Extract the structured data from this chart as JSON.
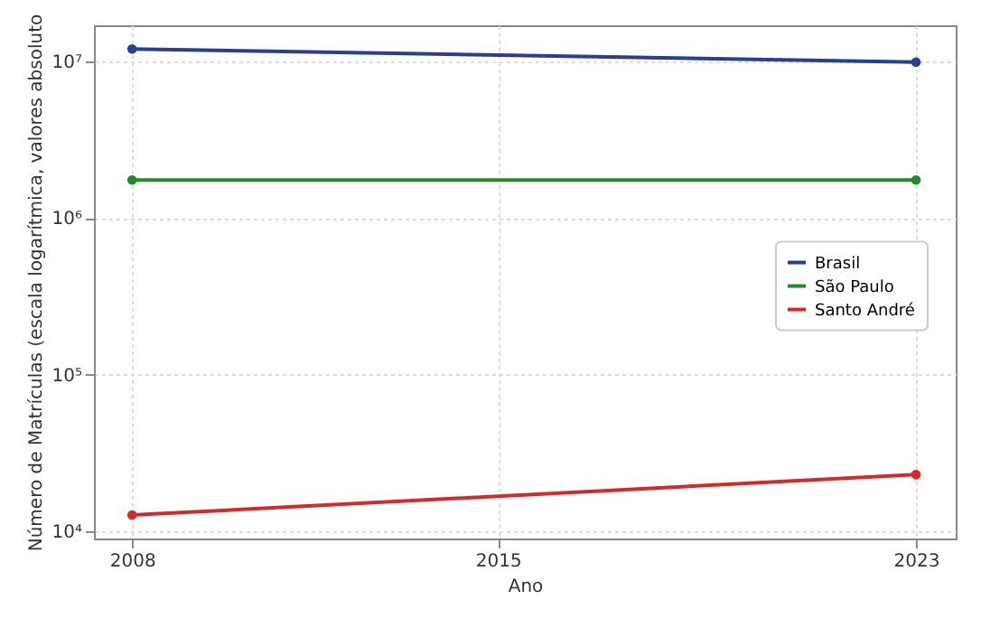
{
  "chart_data": {
    "type": "line",
    "xlabel": "Ano",
    "ylabel": "Número de Matrículas (escala logarítmica, valores absoluto",
    "x": [
      2008,
      2023
    ],
    "series": [
      {
        "name": "Brasil",
        "color": "#2a3f92",
        "values": [
          12000000,
          9900000
        ]
      },
      {
        "name": "São Paulo",
        "color": "#1f8a2e",
        "values": [
          1750000,
          1750000
        ]
      },
      {
        "name": "Santo André",
        "color": "#d62a2a",
        "values": [
          12700,
          23000
        ]
      }
    ],
    "log": true,
    "xlim": [
      2007.27,
      2023.76
    ],
    "xticks": [
      2008,
      2015,
      2023
    ],
    "ylim": [
      9000,
      17000000
    ],
    "yticks": [
      {
        "value": 10000,
        "label": "10⁴"
      },
      {
        "value": 100000,
        "label": "10⁵"
      },
      {
        "value": 1000000,
        "label": "10⁶"
      },
      {
        "value": 10000000,
        "label": "10⁷"
      }
    ],
    "grid": true,
    "legend": "right",
    "marker": "circle",
    "line_style": "solid"
  }
}
